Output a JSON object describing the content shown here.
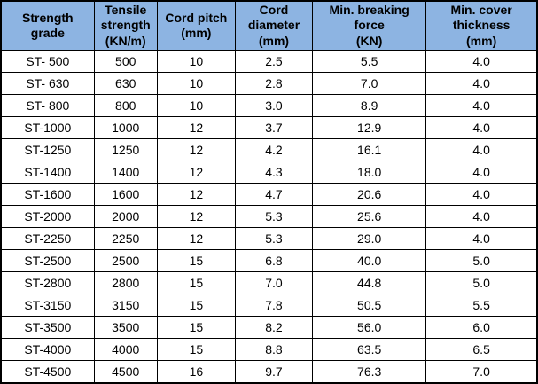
{
  "chart_data": {
    "type": "table",
    "columns": [
      "Strength\ngrade",
      "Tensile\nstrength\n(KN/m)",
      "Cord pitch\n(mm)",
      "Cord\ndiameter\n(mm)",
      "Min. breaking\nforce\n(KN)",
      "Min. cover\nthickness\n(mm)"
    ],
    "rows": [
      [
        "ST- 500",
        "500",
        "10",
        "2.5",
        "5.5",
        "4.0"
      ],
      [
        "ST- 630",
        "630",
        "10",
        "2.8",
        "7.0",
        "4.0"
      ],
      [
        "ST- 800",
        "800",
        "10",
        "3.0",
        "8.9",
        "4.0"
      ],
      [
        "ST-1000",
        "1000",
        "12",
        "3.7",
        "12.9",
        "4.0"
      ],
      [
        "ST-1250",
        "1250",
        "12",
        "4.2",
        "16.1",
        "4.0"
      ],
      [
        "ST-1400",
        "1400",
        "12",
        "4.3",
        "18.0",
        "4.0"
      ],
      [
        "ST-1600",
        "1600",
        "12",
        "4.7",
        "20.6",
        "4.0"
      ],
      [
        "ST-2000",
        "2000",
        "12",
        "5.3",
        "25.6",
        "4.0"
      ],
      [
        "ST-2250",
        "2250",
        "12",
        "5.3",
        "29.0",
        "4.0"
      ],
      [
        "ST-2500",
        "2500",
        "15",
        "6.8",
        "40.0",
        "5.0"
      ],
      [
        "ST-2800",
        "2800",
        "15",
        "7.0",
        "44.8",
        "5.0"
      ],
      [
        "ST-3150",
        "3150",
        "15",
        "7.8",
        "50.5",
        "5.5"
      ],
      [
        "ST-3500",
        "3500",
        "15",
        "8.2",
        "56.0",
        "6.0"
      ],
      [
        "ST-4000",
        "4000",
        "15",
        "8.8",
        "63.5",
        "6.5"
      ],
      [
        "ST-4500",
        "4500",
        "16",
        "9.7",
        "76.3",
        "7.0"
      ]
    ]
  },
  "colors": {
    "header_background": "#8DB4E2",
    "border": "#000000",
    "text": "#000000",
    "row_background": "#FFFFFF"
  }
}
